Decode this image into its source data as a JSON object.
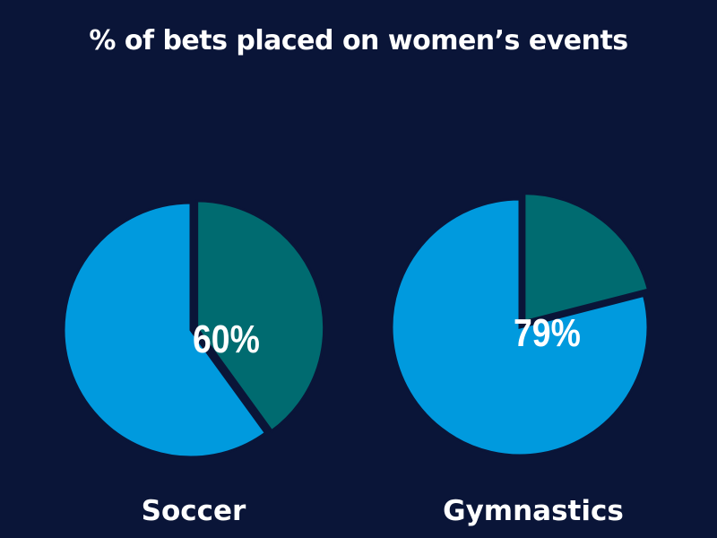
{
  "chart_data": [
    {
      "type": "pie",
      "title": "% of bets placed on women’s events",
      "category": "Soccer",
      "slices": [
        {
          "label": "60%",
          "value": 60,
          "color": "#009ade"
        },
        {
          "value": 40,
          "color": "#006b70"
        }
      ]
    },
    {
      "type": "pie",
      "title": "% of bets placed on women’s events",
      "category": "Gymnastics",
      "slices": [
        {
          "label": "79%",
          "value": 79,
          "color": "#009ade"
        },
        {
          "value": 21,
          "color": "#006b70"
        }
      ]
    }
  ],
  "title": "% of bets placed on women’s events",
  "background": "#0a1538"
}
